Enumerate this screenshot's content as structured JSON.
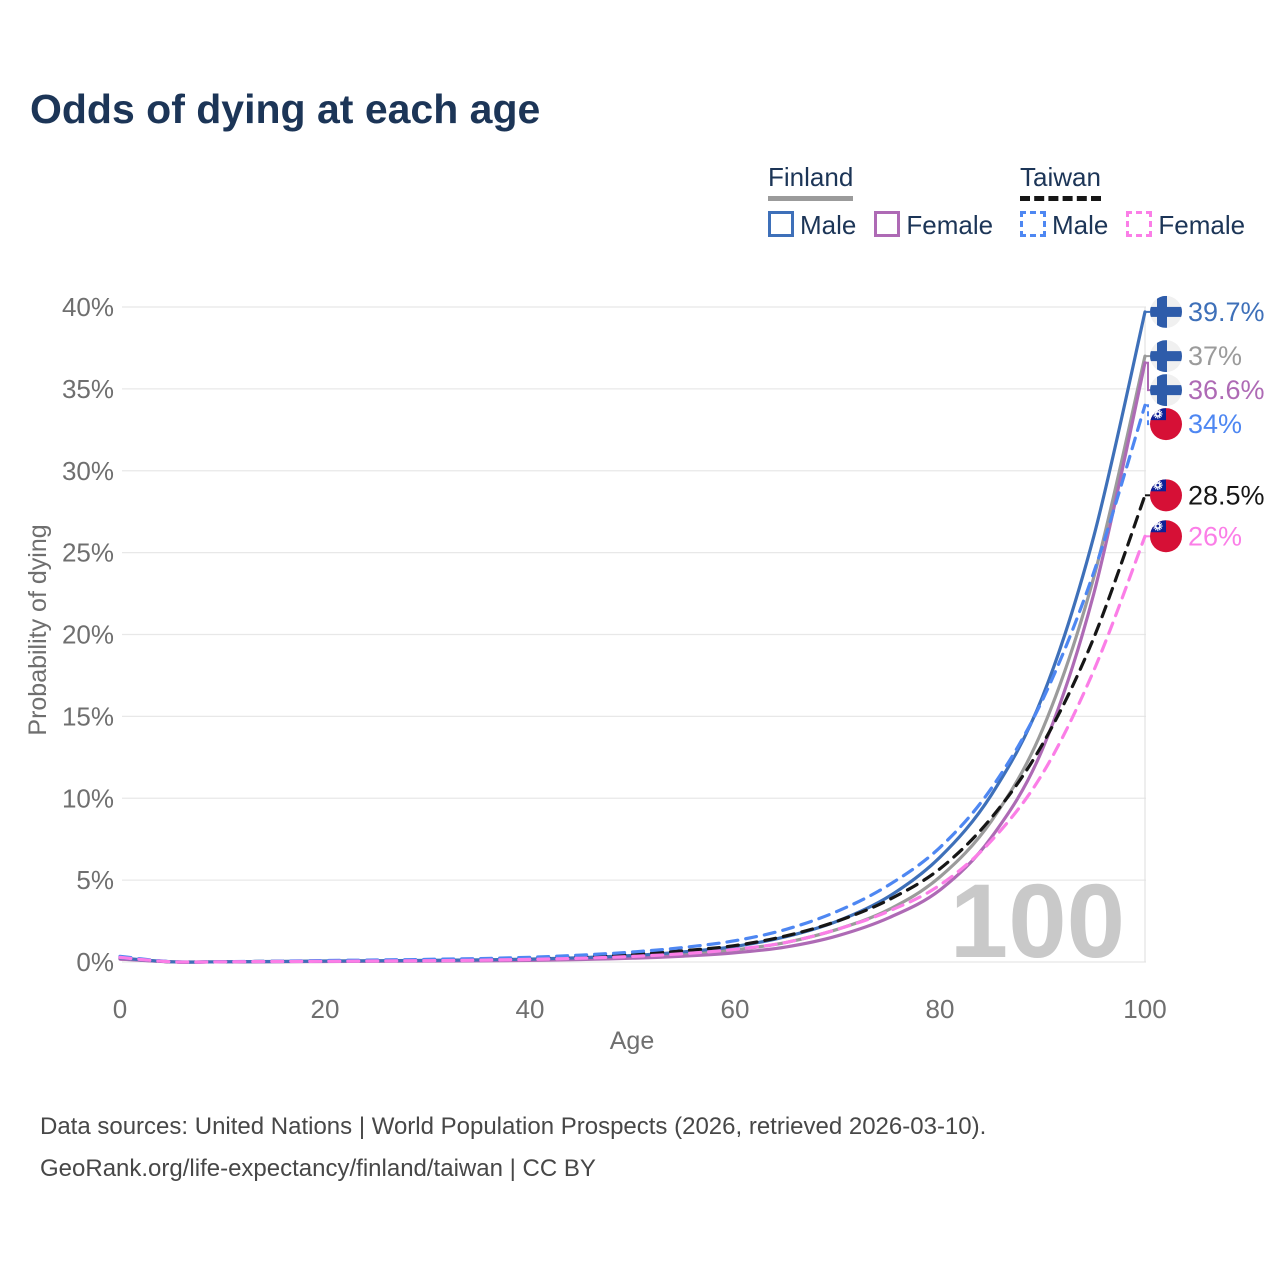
{
  "title": "Odds of dying at each age",
  "legend": {
    "groups": [
      {
        "id": "finland",
        "label": "Finland",
        "line_style": "solid",
        "line_color": "#9b9b9b",
        "items": [
          {
            "series": "finland-male",
            "label": "Male"
          },
          {
            "series": "finland-female",
            "label": "Female"
          }
        ]
      },
      {
        "id": "taiwan",
        "label": "Taiwan",
        "line_style": "dashed",
        "line_color": "#161616",
        "items": [
          {
            "series": "taiwan-male",
            "label": "Male"
          },
          {
            "series": "taiwan-female",
            "label": "Female"
          }
        ]
      }
    ]
  },
  "chart_data": {
    "type": "line",
    "title": "Odds of dying at each age",
    "xlabel": "Age",
    "ylabel": "Probability of dying",
    "xlim": [
      0,
      100
    ],
    "ylim": [
      0,
      40
    ],
    "x_ticks": [
      0,
      20,
      40,
      60,
      80,
      100
    ],
    "y_ticks": [
      "0%",
      "5%",
      "10%",
      "15%",
      "20%",
      "25%",
      "30%",
      "35%",
      "40%"
    ],
    "grid": "horizontal",
    "age_cursor": 100,
    "watermark": "100",
    "series": [
      {
        "id": "finland-total",
        "name": "Finland",
        "country": "finland",
        "sex": "both",
        "color": "#9b9b9b",
        "dash": false,
        "end_label": "37%",
        "flag": "finland",
        "points": [
          [
            0,
            0.2
          ],
          [
            5,
            0.01
          ],
          [
            10,
            0.01
          ],
          [
            15,
            0.02
          ],
          [
            20,
            0.04
          ],
          [
            25,
            0.06
          ],
          [
            30,
            0.08
          ],
          [
            35,
            0.1
          ],
          [
            40,
            0.14
          ],
          [
            45,
            0.2
          ],
          [
            50,
            0.31
          ],
          [
            55,
            0.48
          ],
          [
            60,
            0.74
          ],
          [
            65,
            1.2
          ],
          [
            70,
            2.0
          ],
          [
            75,
            3.2
          ],
          [
            80,
            5.2
          ],
          [
            85,
            8.6
          ],
          [
            90,
            14.2
          ],
          [
            95,
            23.5
          ],
          [
            100,
            37.0
          ]
        ]
      },
      {
        "id": "finland-female",
        "name": "Finland Female",
        "country": "finland",
        "sex": "female",
        "color": "#ae6ab5",
        "dash": false,
        "end_label": "36.6%",
        "flag": "finland",
        "points": [
          [
            0,
            0.18
          ],
          [
            5,
            0.01
          ],
          [
            10,
            0.01
          ],
          [
            15,
            0.02
          ],
          [
            20,
            0.03
          ],
          [
            25,
            0.04
          ],
          [
            30,
            0.05
          ],
          [
            35,
            0.07
          ],
          [
            40,
            0.1
          ],
          [
            45,
            0.15
          ],
          [
            50,
            0.23
          ],
          [
            55,
            0.36
          ],
          [
            60,
            0.56
          ],
          [
            65,
            0.92
          ],
          [
            70,
            1.6
          ],
          [
            75,
            2.7
          ],
          [
            80,
            4.4
          ],
          [
            85,
            7.6
          ],
          [
            90,
            13.0
          ],
          [
            95,
            22.5
          ],
          [
            100,
            36.6
          ]
        ]
      },
      {
        "id": "finland-male",
        "name": "Finland Male",
        "country": "finland",
        "sex": "male",
        "color": "#3e70b9",
        "dash": false,
        "end_label": "39.7%",
        "flag": "finland",
        "points": [
          [
            0,
            0.25
          ],
          [
            5,
            0.01
          ],
          [
            10,
            0.01
          ],
          [
            15,
            0.03
          ],
          [
            20,
            0.06
          ],
          [
            25,
            0.08
          ],
          [
            30,
            0.1
          ],
          [
            35,
            0.13
          ],
          [
            40,
            0.18
          ],
          [
            45,
            0.26
          ],
          [
            50,
            0.4
          ],
          [
            55,
            0.62
          ],
          [
            60,
            0.95
          ],
          [
            65,
            1.55
          ],
          [
            70,
            2.5
          ],
          [
            75,
            4.0
          ],
          [
            80,
            6.4
          ],
          [
            85,
            10.2
          ],
          [
            90,
            16.2
          ],
          [
            95,
            26.0
          ],
          [
            100,
            39.7
          ]
        ]
      },
      {
        "id": "taiwan-total",
        "name": "Taiwan",
        "country": "taiwan",
        "sex": "both",
        "color": "#161616",
        "dash": true,
        "end_label": "28.5%",
        "flag": "taiwan",
        "points": [
          [
            0,
            0.3
          ],
          [
            5,
            0.015
          ],
          [
            10,
            0.015
          ],
          [
            15,
            0.04
          ],
          [
            20,
            0.07
          ],
          [
            25,
            0.09
          ],
          [
            30,
            0.12
          ],
          [
            35,
            0.16
          ],
          [
            40,
            0.22
          ],
          [
            45,
            0.32
          ],
          [
            50,
            0.47
          ],
          [
            55,
            0.69
          ],
          [
            60,
            1.0
          ],
          [
            65,
            1.6
          ],
          [
            70,
            2.5
          ],
          [
            75,
            3.8
          ],
          [
            80,
            5.7
          ],
          [
            85,
            8.8
          ],
          [
            90,
            13.3
          ],
          [
            95,
            19.8
          ],
          [
            100,
            28.5
          ]
        ]
      },
      {
        "id": "taiwan-male",
        "name": "Taiwan Male",
        "country": "taiwan",
        "sex": "male",
        "color": "#4e87f2",
        "dash": true,
        "end_label": "34%",
        "flag": "taiwan",
        "points": [
          [
            0,
            0.35
          ],
          [
            5,
            0.02
          ],
          [
            10,
            0.02
          ],
          [
            15,
            0.05
          ],
          [
            20,
            0.09
          ],
          [
            25,
            0.12
          ],
          [
            30,
            0.16
          ],
          [
            35,
            0.21
          ],
          [
            40,
            0.29
          ],
          [
            45,
            0.42
          ],
          [
            50,
            0.61
          ],
          [
            55,
            0.89
          ],
          [
            60,
            1.3
          ],
          [
            65,
            2.0
          ],
          [
            70,
            3.1
          ],
          [
            75,
            4.7
          ],
          [
            80,
            7.0
          ],
          [
            85,
            10.6
          ],
          [
            90,
            16.0
          ],
          [
            95,
            23.8
          ],
          [
            100,
            34.0
          ]
        ]
      },
      {
        "id": "taiwan-female",
        "name": "Taiwan Female",
        "country": "taiwan",
        "sex": "female",
        "color": "#fb7ee7",
        "dash": true,
        "end_label": "26%",
        "flag": "taiwan",
        "points": [
          [
            0,
            0.28
          ],
          [
            5,
            0.01
          ],
          [
            10,
            0.01
          ],
          [
            15,
            0.03
          ],
          [
            20,
            0.04
          ],
          [
            25,
            0.06
          ],
          [
            30,
            0.08
          ],
          [
            35,
            0.11
          ],
          [
            40,
            0.16
          ],
          [
            45,
            0.23
          ],
          [
            50,
            0.34
          ],
          [
            55,
            0.51
          ],
          [
            60,
            0.77
          ],
          [
            65,
            1.2
          ],
          [
            70,
            2.0
          ],
          [
            75,
            3.1
          ],
          [
            80,
            4.7
          ],
          [
            85,
            7.4
          ],
          [
            90,
            11.5
          ],
          [
            95,
            17.8
          ],
          [
            100,
            26.0
          ]
        ]
      }
    ]
  },
  "flag_colors": {
    "finland_bg": "#f0f0f0",
    "finland_cross": "#2e5caa",
    "taiwan_red": "#d61036",
    "taiwan_blue": "#0d1f96",
    "taiwan_sun": "#ffffff"
  },
  "source": {
    "line1": "Data sources: United Nations | World Population Prospects (2026, retrieved 2026-03-10).",
    "line2": "GeoRank.org/life-expectancy/finland/taiwan | CC BY"
  }
}
